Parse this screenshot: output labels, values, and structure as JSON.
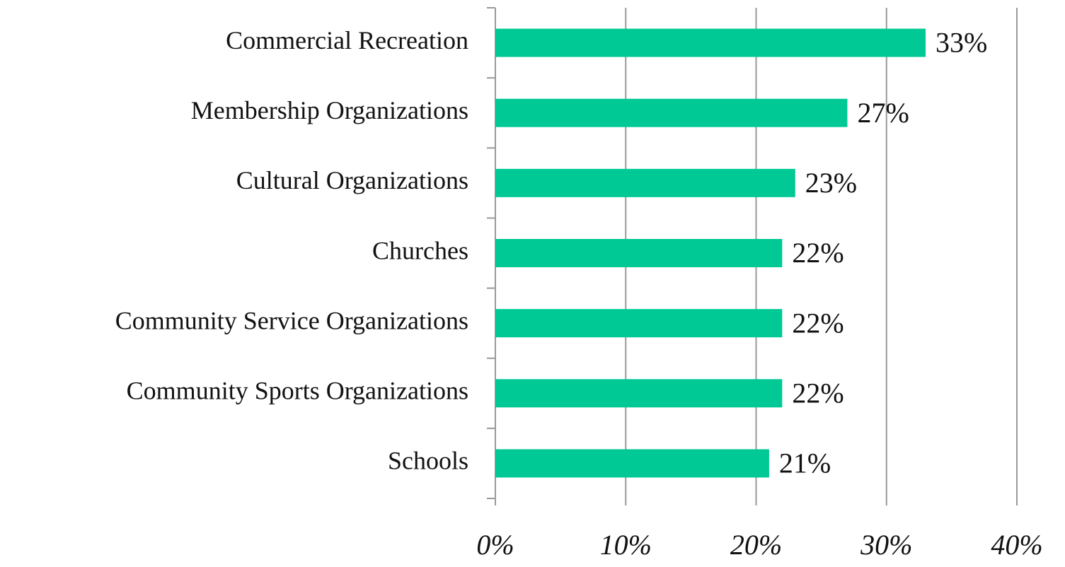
{
  "chart_data": {
    "type": "bar",
    "orientation": "horizontal",
    "categories": [
      "Commercial Recreation",
      "Membership Organizations",
      "Cultural Organizations",
      "Churches",
      "Community Service Organizations",
      "Community Sports Organizations",
      "Schools"
    ],
    "values": [
      33,
      27,
      23,
      22,
      22,
      22,
      21
    ],
    "value_labels": [
      "33%",
      "27%",
      "23%",
      "22%",
      "22%",
      "22%",
      "21%"
    ],
    "color": "#00c995",
    "xlim": [
      0,
      40
    ],
    "xticks": [
      {
        "value": 0,
        "label": "0%"
      },
      {
        "value": 10,
        "label": "10%"
      },
      {
        "value": 20,
        "label": "20%"
      },
      {
        "value": 30,
        "label": "30%"
      },
      {
        "value": 40,
        "label": "40%"
      }
    ],
    "grid": true
  }
}
